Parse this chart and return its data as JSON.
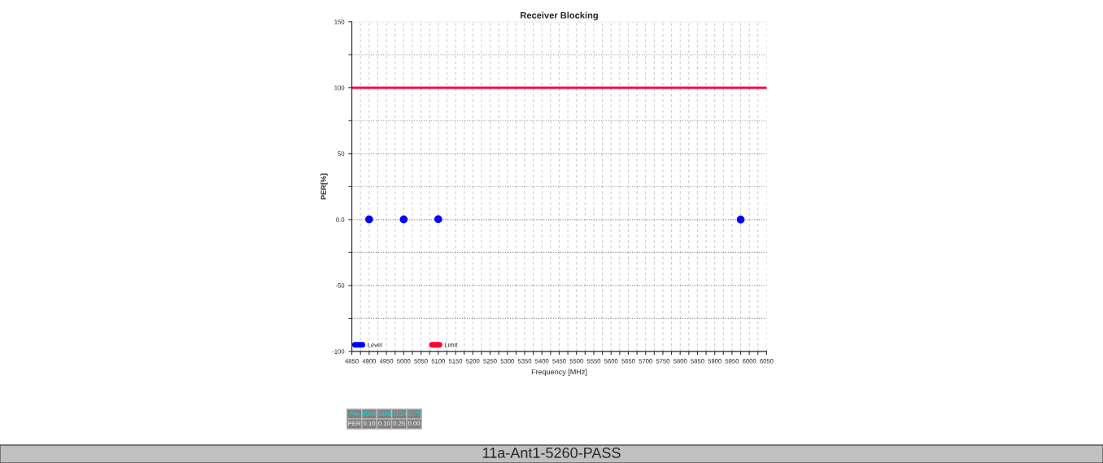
{
  "chart_data": {
    "type": "scatter",
    "title": "Receiver Blocking",
    "xlabel": "Frequency [MHz]",
    "ylabel": "PER[%]",
    "x": [
      4900,
      5000,
      5100,
      5975
    ],
    "series": [
      {
        "name": "Level",
        "color": "#0000ff",
        "values": [
          0.1,
          0.1,
          0.25,
          0.0
        ]
      }
    ],
    "value_labels": [
      "0.10",
      "0.10",
      "0.25",
      "0.00"
    ],
    "ref_lines": [
      {
        "axis": "y",
        "value": 100,
        "label": "Limit",
        "color": "#ff0033",
        "line_style": "solid"
      }
    ],
    "xlim": [
      4850,
      6050
    ],
    "ylim": [
      -100,
      150
    ],
    "xticks": [
      4850,
      {
        "value": 4875,
        "label": null
      },
      4900,
      {
        "value": 4925,
        "label": null
      },
      4950,
      {
        "value": 4975,
        "label": null
      },
      5000,
      {
        "value": 5025,
        "label": null
      },
      5050,
      {
        "value": 5075,
        "label": null
      },
      5100,
      {
        "value": 5125,
        "label": null
      },
      5150,
      {
        "value": 5175,
        "label": null
      },
      5200,
      {
        "value": 5225,
        "label": null
      },
      5250,
      {
        "value": 5275,
        "label": null
      },
      5300,
      {
        "value": 5325,
        "label": null
      },
      5350,
      {
        "value": 5375,
        "label": null
      },
      5400,
      {
        "value": 5425,
        "label": null
      },
      5450,
      {
        "value": 5475,
        "label": null
      },
      5500,
      {
        "value": 5525,
        "label": null
      },
      5550,
      {
        "value": 5575,
        "label": null
      },
      5600,
      {
        "value": 5625,
        "label": null
      },
      5650,
      {
        "value": 5675,
        "label": null
      },
      5700,
      {
        "value": 5725,
        "label": null
      },
      5750,
      {
        "value": 5775,
        "label": null
      },
      5800,
      {
        "value": 5825,
        "label": null
      },
      5850,
      {
        "value": 5875,
        "label": null
      },
      5900,
      {
        "value": 5925,
        "label": null
      },
      5950,
      {
        "value": 5975,
        "label": null
      },
      6000,
      {
        "value": 6025,
        "label": null
      },
      6050
    ],
    "yticks": [
      {
        "value": -100,
        "label": "-100"
      },
      {
        "value": -75,
        "label": null
      },
      {
        "value": -50,
        "label": "-50"
      },
      {
        "value": -25,
        "label": null
      },
      {
        "value": 0,
        "label": "0.0"
      },
      {
        "value": 25,
        "label": null
      },
      {
        "value": 50,
        "label": "50"
      },
      {
        "value": 75,
        "label": null
      },
      {
        "value": 100,
        "label": "100"
      },
      {
        "value": 125,
        "label": null
      },
      {
        "value": 150,
        "label": "150"
      }
    ],
    "grid": true,
    "legend": "bottom left",
    "marker": "circle",
    "annotations": [
      "Fre",
      "PER",
      "11a-Ant1-5260-PASS",
      "4900",
      "5000",
      "5100",
      "5975"
    ]
  }
}
